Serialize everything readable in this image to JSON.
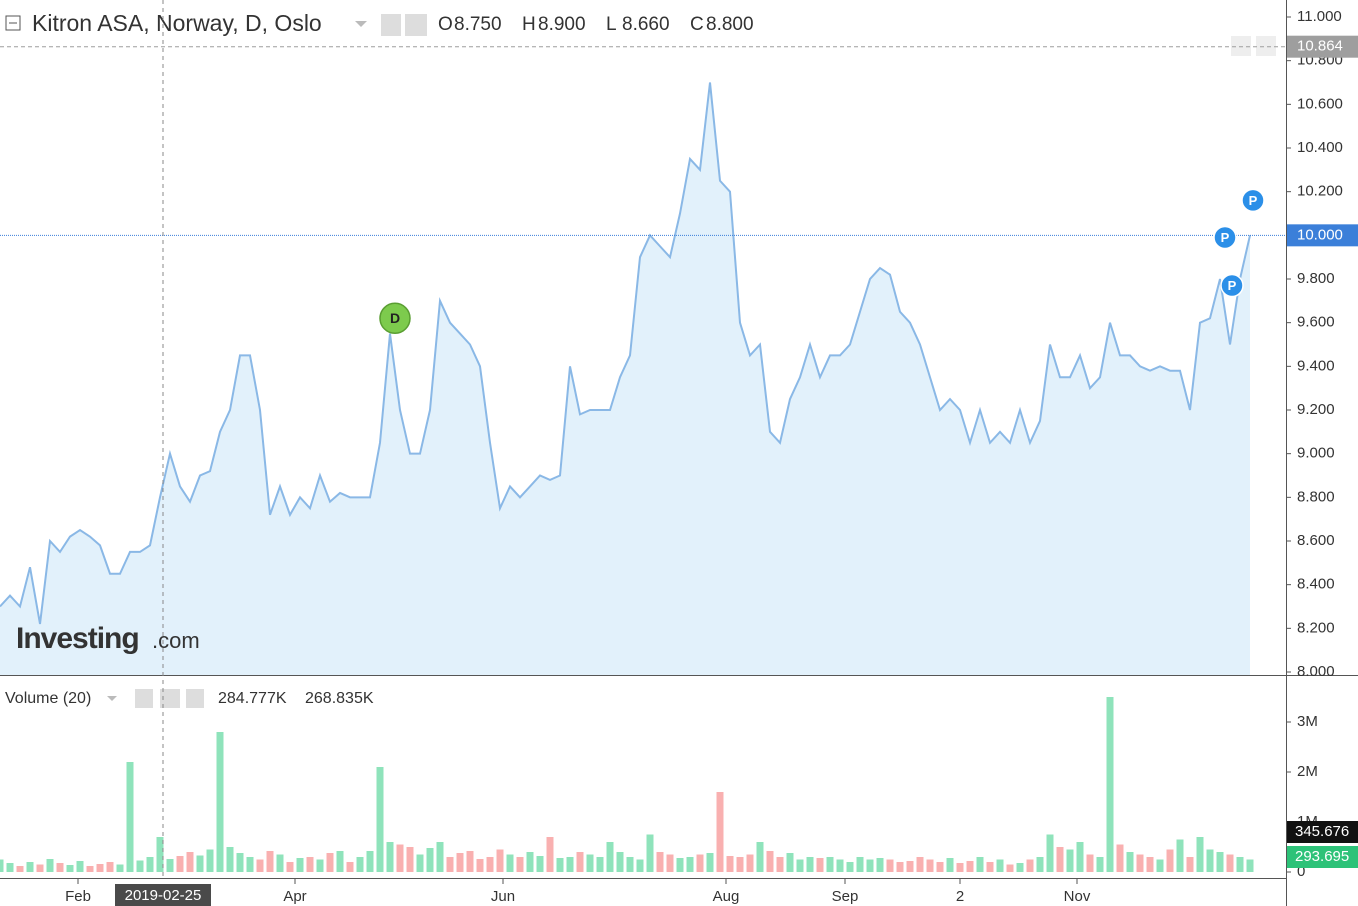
{
  "header": {
    "title": "Kitron ASA, Norway, D, Oslo",
    "ohlc": [
      {
        "key": "O",
        "value": "8.750"
      },
      {
        "key": "H",
        "value": "8.900"
      },
      {
        "key": "L",
        "value": "8.660"
      },
      {
        "key": "C",
        "value": "8.800"
      }
    ]
  },
  "watermark": {
    "brand": "Investing",
    "suffix": ".com"
  },
  "chart_data": {
    "type": "area",
    "xlim": [
      0,
      125
    ],
    "xticks": [
      {
        "value": 7.8,
        "label": "Feb"
      },
      {
        "value": 29.5,
        "label": "Apr"
      },
      {
        "value": 50.3,
        "label": "Jun"
      },
      {
        "value": 72.6,
        "label": "Aug"
      },
      {
        "value": 84.5,
        "label": "Sep"
      },
      {
        "value": 96,
        "label": "2"
      },
      {
        "value": 107.7,
        "label": "Nov"
      }
    ],
    "crosshair": {
      "value": 16.3,
      "label": "2019-02-25"
    },
    "ylim": [
      8,
      11
    ],
    "yticks": [
      {
        "value": 8,
        "label": "8.000"
      },
      {
        "value": 8.2,
        "label": "8.200"
      },
      {
        "value": 8.4,
        "label": "8.400"
      },
      {
        "value": 8.6,
        "label": "8.600"
      },
      {
        "value": 8.8,
        "label": "8.800"
      },
      {
        "value": 9,
        "label": "9.000"
      },
      {
        "value": 9.2,
        "label": "9.200"
      },
      {
        "value": 9.4,
        "label": "9.400"
      },
      {
        "value": 9.6,
        "label": "9.600"
      },
      {
        "value": 9.8,
        "label": "9.800"
      },
      {
        "value": 10,
        "label": "10.000"
      },
      {
        "value": 10.2,
        "label": "10.200"
      },
      {
        "value": 10.4,
        "label": "10.400"
      },
      {
        "value": 10.6,
        "label": "10.600"
      },
      {
        "value": 10.8,
        "label": "10.800"
      },
      {
        "value": 11,
        "label": "11.000"
      }
    ],
    "price_lines": [
      {
        "value": 10.864,
        "label": "10.864",
        "color": "#9e9e9e"
      },
      {
        "value": 10,
        "label": "10.000",
        "color": "#3b7fd9"
      }
    ],
    "series": [
      {
        "name": "Price",
        "color": "#8ab8e6",
        "fill": "#e2f1fb",
        "values": [
          8.3,
          8.35,
          8.3,
          8.48,
          8.22,
          8.6,
          8.55,
          8.62,
          8.65,
          8.62,
          8.58,
          8.45,
          8.45,
          8.55,
          8.55,
          8.58,
          8.8,
          9.0,
          8.85,
          8.78,
          8.9,
          8.92,
          9.1,
          9.2,
          9.45,
          9.45,
          9.2,
          8.72,
          8.85,
          8.72,
          8.8,
          8.75,
          8.9,
          8.78,
          8.82,
          8.8,
          8.8,
          8.8,
          9.05,
          9.55,
          9.2,
          9.0,
          9.0,
          9.2,
          9.7,
          9.6,
          9.55,
          9.5,
          9.4,
          9.05,
          8.75,
          8.85,
          8.8,
          8.85,
          8.9,
          8.88,
          8.9,
          9.4,
          9.18,
          9.2,
          9.2,
          9.2,
          9.35,
          9.45,
          9.9,
          10.0,
          9.95,
          9.9,
          10.1,
          10.35,
          10.3,
          10.7,
          10.25,
          10.2,
          9.6,
          9.45,
          9.5,
          9.1,
          9.05,
          9.25,
          9.35,
          9.5,
          9.35,
          9.45,
          9.45,
          9.5,
          9.65,
          9.8,
          9.85,
          9.82,
          9.65,
          9.6,
          9.5,
          9.35,
          9.2,
          9.25,
          9.2,
          9.05,
          9.2,
          9.05,
          9.1,
          9.05,
          9.2,
          9.05,
          9.15,
          9.5,
          9.35,
          9.35,
          9.45,
          9.3,
          9.35,
          9.6,
          9.45,
          9.45,
          9.4,
          9.38,
          9.4,
          9.38,
          9.38,
          9.2,
          9.6,
          9.62,
          9.8,
          9.5,
          9.8,
          10.0
        ]
      }
    ],
    "events": [
      {
        "label": "D",
        "x": 39.5,
        "y": 9.62,
        "color": "#7dcb4d"
      },
      {
        "label": "P",
        "x": 122.5,
        "y": 9.99,
        "color": "#2b8fe8"
      },
      {
        "label": "P",
        "x": 123.2,
        "y": 9.77,
        "color": "#2b8fe8"
      },
      {
        "label": "P",
        "x": 125.3,
        "y": 10.16,
        "color": "#2b8fe8"
      }
    ]
  },
  "volume_chart": {
    "type": "bar",
    "title": "Volume (20)",
    "legend_values": [
      {
        "value": "284.777K",
        "color": "#26b36b"
      },
      {
        "value": "268.835K",
        "color": "#222"
      }
    ],
    "ylim": [
      0,
      4000000
    ],
    "yticks": [
      0,
      {
        "value": 1000000,
        "label": "1M"
      },
      {
        "value": 2000000,
        "label": "2M"
      },
      {
        "value": 3000000,
        "label": "3M"
      }
    ],
    "markers": [
      {
        "label": "345.676",
        "color": "#111"
      },
      {
        "label": "293.695",
        "color": "#2dc278"
      }
    ],
    "up_color": "#8fe3bb",
    "down_color": "#f9b0b0",
    "values": [
      250000,
      180000,
      120000,
      200000,
      150000,
      260000,
      180000,
      140000,
      220000,
      120000,
      160000,
      200000,
      150000,
      2200000,
      230000,
      300000,
      700000,
      260000,
      320000,
      400000,
      330000,
      450000,
      2800000,
      500000,
      380000,
      300000,
      250000,
      420000,
      350000,
      200000,
      280000,
      300000,
      250000,
      380000,
      420000,
      200000,
      300000,
      420000,
      2100000,
      600000,
      550000,
      500000,
      350000,
      480000,
      600000,
      300000,
      380000,
      420000,
      260000,
      300000,
      450000,
      350000,
      300000,
      400000,
      320000,
      700000,
      280000,
      300000,
      400000,
      350000,
      300000,
      600000,
      400000,
      300000,
      250000,
      750000,
      400000,
      350000,
      280000,
      300000,
      350000,
      380000,
      1600000,
      320000,
      300000,
      350000,
      600000,
      420000,
      300000,
      380000,
      250000,
      300000,
      280000,
      300000,
      250000,
      200000,
      300000,
      250000,
      280000,
      250000,
      200000,
      220000,
      300000,
      250000,
      200000,
      280000,
      180000,
      220000,
      300000,
      200000,
      250000,
      150000,
      180000,
      250000,
      300000,
      750000,
      500000,
      450000,
      600000,
      350000,
      300000,
      3500000,
      550000,
      400000,
      350000,
      300000,
      250000,
      450000,
      650000,
      300000,
      700000,
      450000,
      400000,
      350000,
      300000,
      250000
    ]
  }
}
